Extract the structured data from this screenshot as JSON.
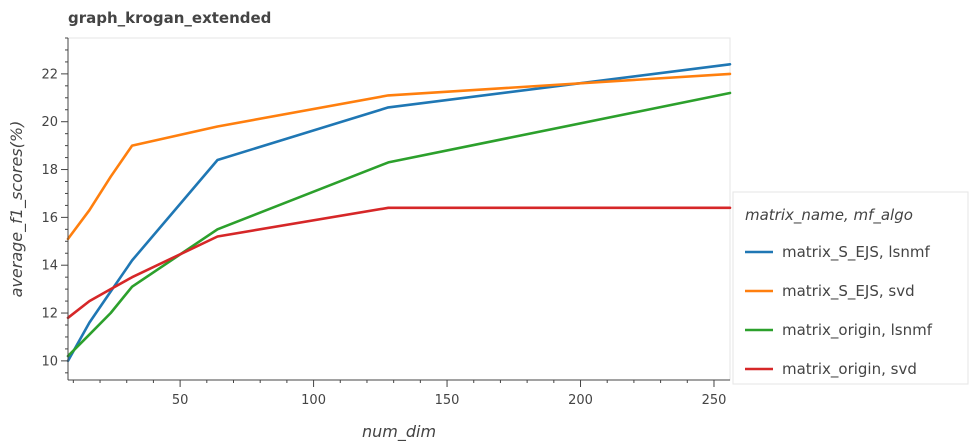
{
  "chart_data": {
    "type": "line",
    "title": "graph_krogan_extended",
    "xlabel": "num_dim",
    "ylabel": "average_f1_scores(%)",
    "xlim": [
      8,
      256
    ],
    "ylim": [
      9.2,
      23.5
    ],
    "x_ticks": [
      50,
      100,
      150,
      200,
      250
    ],
    "y_ticks": [
      10,
      12,
      14,
      16,
      18,
      20,
      22
    ],
    "grid": false,
    "legend": {
      "title": "matrix_name, mf_algo",
      "placement": "right"
    },
    "series": [
      {
        "name": "matrix_S_EJS, lsnmf",
        "color": "#1f77b4",
        "x": [
          8,
          16,
          24,
          32,
          64,
          128,
          256
        ],
        "y": [
          10.0,
          11.6,
          12.9,
          14.2,
          18.4,
          20.6,
          22.4
        ]
      },
      {
        "name": "matrix_S_EJS, svd",
        "color": "#ff7f0e",
        "x": [
          8,
          16,
          24,
          32,
          64,
          128,
          256
        ],
        "y": [
          15.1,
          16.3,
          17.7,
          19.0,
          19.8,
          21.1,
          22.0
        ]
      },
      {
        "name": "matrix_origin, lsnmf",
        "color": "#2ca02c",
        "x": [
          8,
          16,
          24,
          32,
          64,
          128,
          256
        ],
        "y": [
          10.2,
          11.1,
          12.0,
          13.1,
          15.5,
          18.3,
          21.2
        ]
      },
      {
        "name": "matrix_origin, svd",
        "color": "#d62728",
        "x": [
          8,
          16,
          24,
          32,
          64,
          128,
          256
        ],
        "y": [
          11.8,
          12.5,
          13.0,
          13.5,
          15.2,
          16.4,
          16.4
        ]
      }
    ]
  }
}
